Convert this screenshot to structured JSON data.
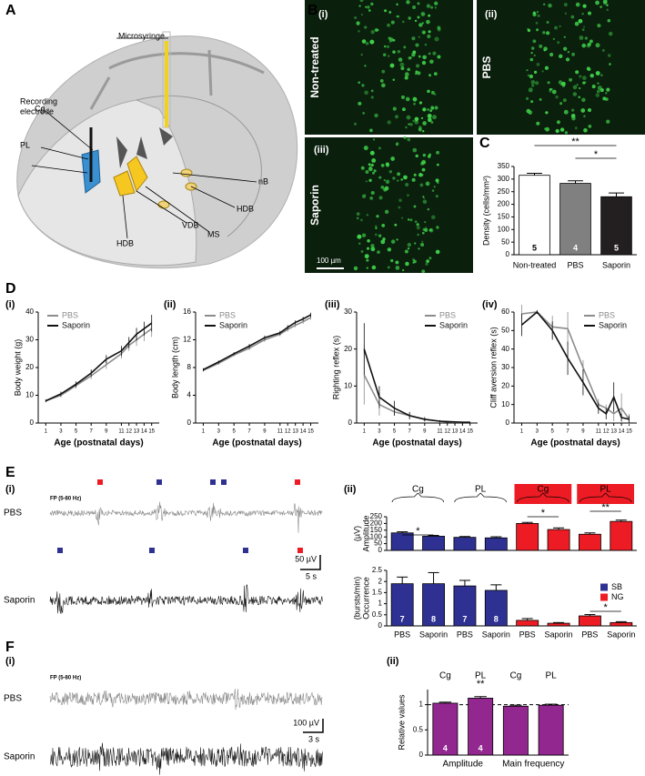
{
  "panel_labels": [
    "A",
    "B",
    "C",
    "D",
    "E",
    "F"
  ],
  "sub_labels": [
    "(i)",
    "(ii)",
    "(iii)",
    "(i)",
    "(ii)",
    "(iii)",
    "(iv)",
    "(i)",
    "(ii)",
    "(i)",
    "(ii)"
  ],
  "diagram": {
    "labels": [
      "Microsyringe",
      "Recording",
      "electrode",
      "Cg",
      "PL",
      "nB",
      "HDB",
      "MS",
      "VDB",
      "HDB"
    ]
  },
  "micrographs": {
    "labels": [
      "Non-treated",
      "PBS",
      "Saporin"
    ],
    "scale_bar": "100 µm"
  },
  "traces": {
    "E": {
      "filter": "FP (5-80 Hz)",
      "rows": [
        "PBS",
        "Saporin"
      ],
      "scale": [
        "50 µV",
        "5 s"
      ]
    },
    "F": {
      "filter": "FP (5-80 Hz)",
      "rows": [
        "PBS",
        "Saporin"
      ],
      "scale": [
        "100 µV",
        "3 s"
      ]
    }
  },
  "chart_data": [
    {
      "type": "bar",
      "y_label": [
        "Density (cells/mm²)"
      ],
      "categories": [
        "Non-treated",
        "PBS",
        "Saporin"
      ],
      "values": [
        315,
        283,
        230
      ],
      "errors": [
        8,
        10,
        15
      ],
      "colors": [
        "#ffffff",
        "#808080",
        "#231f20"
      ],
      "ylim": [
        0,
        350
      ],
      "yticks": [
        0,
        50,
        100,
        150,
        200,
        250,
        300,
        350
      ],
      "n_labels": [
        "5",
        "4",
        "5"
      ],
      "significance": [
        "**",
        "*"
      ]
    },
    {
      "type": "line",
      "y_label": [
        "Body weight (g)"
      ],
      "x_label": "Age (postnatal days)",
      "x": [
        1,
        3,
        5,
        7,
        9,
        11,
        12,
        13,
        14,
        15
      ],
      "xlim": [
        0,
        16
      ],
      "xticks": [
        1,
        3,
        5,
        7,
        9,
        11,
        12,
        13,
        14,
        15
      ],
      "ylim": [
        0,
        40
      ],
      "yticks": [
        0,
        10,
        20,
        30,
        40
      ],
      "legend": "upper left",
      "series": [
        {
          "name": "PBS",
          "color": "#8c8c8c",
          "values": [
            8,
            10,
            13.5,
            17,
            21,
            25,
            28,
            30,
            32,
            34
          ],
          "errors": [
            0.5,
            0.8,
            1,
            1.2,
            1.5,
            1.8,
            2,
            2.2,
            2.5,
            3
          ]
        },
        {
          "name": "Saporin",
          "color": "#111111",
          "values": [
            8,
            10.5,
            14,
            18,
            23,
            26,
            29,
            32,
            34,
            36
          ],
          "errors": [
            0.5,
            0.8,
            1,
            1.3,
            1.5,
            1.8,
            2,
            2.3,
            2.5,
            3
          ]
        }
      ]
    },
    {
      "type": "line",
      "y_label": [
        "Body length (cm)"
      ],
      "x_label": "Age (postnatal days)",
      "x": [
        1,
        3,
        5,
        7,
        9,
        11,
        12,
        13,
        14,
        15
      ],
      "xlim": [
        0,
        16
      ],
      "xticks": [
        1,
        3,
        5,
        7,
        9,
        11,
        12,
        13,
        14,
        15
      ],
      "ylim": [
        0,
        16
      ],
      "yticks": [
        0,
        4,
        8,
        12,
        16
      ],
      "legend": "upper left",
      "series": [
        {
          "name": "PBS",
          "color": "#8c8c8c",
          "values": [
            7.6,
            8.6,
            9.8,
            10.8,
            12,
            12.8,
            13.5,
            14.1,
            14.6,
            15.2
          ],
          "errors": [
            0.2,
            0.2,
            0.2,
            0.3,
            0.3,
            0.3,
            0.3,
            0.3,
            0.3,
            0.3
          ]
        },
        {
          "name": "Saporin",
          "color": "#111111",
          "values": [
            7.7,
            8.8,
            10,
            11.1,
            12.3,
            13,
            13.8,
            14.5,
            15,
            15.6
          ],
          "errors": [
            0.2,
            0.2,
            0.2,
            0.3,
            0.3,
            0.3,
            0.3,
            0.3,
            0.3,
            0.3
          ]
        }
      ]
    },
    {
      "type": "line",
      "y_label": [
        "Righting reflex (s)"
      ],
      "x_label": "Age (postnatal days)",
      "x": [
        1,
        3,
        5,
        7,
        9,
        11,
        12,
        13,
        14,
        15
      ],
      "xlim": [
        0,
        16
      ],
      "xticks": [
        1,
        3,
        5,
        7,
        9,
        11,
        12,
        13,
        14,
        15
      ],
      "ylim": [
        0,
        30
      ],
      "yticks": [
        0,
        10,
        20,
        30
      ],
      "legend": "upper right",
      "series": [
        {
          "name": "PBS",
          "color": "#8c8c8c",
          "values": [
            13,
            5,
            3,
            2,
            1,
            0.5,
            0.3,
            0.2,
            0.2,
            0.2
          ],
          "errors": [
            8,
            3,
            1,
            0.8,
            0.5,
            0.2,
            0.2,
            0.2,
            0.1,
            0.1
          ]
        },
        {
          "name": "Saporin",
          "color": "#111111",
          "values": [
            20,
            7,
            4,
            2,
            1,
            0.5,
            0.4,
            0.3,
            0.2,
            0.2
          ],
          "errors": [
            7,
            3,
            2,
            1,
            0.6,
            0.3,
            0.2,
            0.2,
            0.1,
            0.1
          ]
        }
      ]
    },
    {
      "type": "line",
      "y_label": [
        "Cliff aversion reflex (s)"
      ],
      "x_label": "Age (postnatal days)",
      "x": [
        1,
        3,
        5,
        7,
        9,
        11,
        12,
        13,
        14,
        15
      ],
      "xlim": [
        0,
        16
      ],
      "xticks": [
        1,
        3,
        5,
        7,
        9,
        11,
        12,
        13,
        14,
        15
      ],
      "ylim": [
        0,
        60
      ],
      "yticks": [
        0,
        10,
        20,
        30,
        40,
        50,
        60
      ],
      "legend": "upper right",
      "series": [
        {
          "name": "PBS",
          "color": "#8c8c8c",
          "values": [
            59,
            60,
            52,
            51,
            30,
            10,
            8,
            5,
            8,
            2
          ],
          "errors": [
            5,
            1,
            6,
            9,
            4,
            3,
            2,
            4,
            8,
            3
          ]
        },
        {
          "name": "Saporin",
          "color": "#111111",
          "values": [
            53,
            60,
            50,
            35,
            22,
            8,
            5,
            14,
            3,
            2
          ],
          "errors": [
            6,
            1,
            5,
            9,
            7,
            3,
            3,
            8,
            2,
            2
          ]
        }
      ]
    },
    {
      "type": "bar",
      "y_label": [
        "Amplitude",
        "(µV)"
      ],
      "groups": [
        "Cg",
        "PL",
        "Cg",
        "PL"
      ],
      "ylim": [
        0,
        250
      ],
      "yticks": [
        0,
        50,
        100,
        150,
        200,
        250
      ],
      "significance": [
        "*",
        "*",
        "**"
      ],
      "series": [
        {
          "color": "#2e3192",
          "values": [
            130,
            105,
            97,
            93,
            null,
            null,
            null,
            null
          ],
          "errors": [
            8,
            6,
            6,
            8,
            null,
            null,
            null,
            null
          ]
        },
        {
          "color": "#ed1c24",
          "values": [
            null,
            null,
            null,
            null,
            200,
            155,
            120,
            215
          ],
          "errors": [
            null,
            null,
            null,
            null,
            8,
            12,
            10,
            10
          ]
        }
      ]
    },
    {
      "type": "bar",
      "y_label": [
        "Occurrence",
        "(bursts/min)"
      ],
      "categories": [
        "PBS",
        "Saporin",
        "PBS",
        "Saporin",
        "PBS",
        "Saporin",
        "PBS",
        "Saporin"
      ],
      "ylim": [
        0,
        2.5
      ],
      "yticks": [
        0,
        0.5,
        1,
        1.5,
        2,
        2.5
      ],
      "n_labels": [
        "7",
        "8",
        "7",
        "8"
      ],
      "significance": [
        "*"
      ],
      "legend": "center right",
      "series": [
        {
          "name": "SB",
          "color": "#2e3192",
          "values": [
            1.9,
            1.9,
            1.8,
            1.6,
            null,
            null,
            null,
            null
          ],
          "errors": [
            0.3,
            0.5,
            0.25,
            0.25,
            null,
            null,
            null,
            null
          ]
        },
        {
          "name": "NG",
          "color": "#ed1c24",
          "values": [
            null,
            null,
            null,
            null,
            0.25,
            0.12,
            0.45,
            0.15
          ],
          "errors": [
            null,
            null,
            null,
            null,
            0.08,
            0.03,
            0.06,
            0.04
          ]
        }
      ]
    },
    {
      "type": "bar",
      "y_label": [
        "Relative values"
      ],
      "categories": [
        "Cg",
        "PL",
        "Cg",
        "PL"
      ],
      "groups": [
        "Amplitude",
        "Main frequency"
      ],
      "values": [
        1.03,
        1.13,
        0.97,
        0.99
      ],
      "errors": [
        0.02,
        0.03,
        0.02,
        0.02
      ],
      "color": "#92278f",
      "ylim": [
        0,
        1.3
      ],
      "yticks": [
        0,
        0.5,
        1
      ],
      "reference_line": 1,
      "n_labels": [
        "4",
        "4"
      ],
      "significance": [
        "**"
      ]
    }
  ]
}
